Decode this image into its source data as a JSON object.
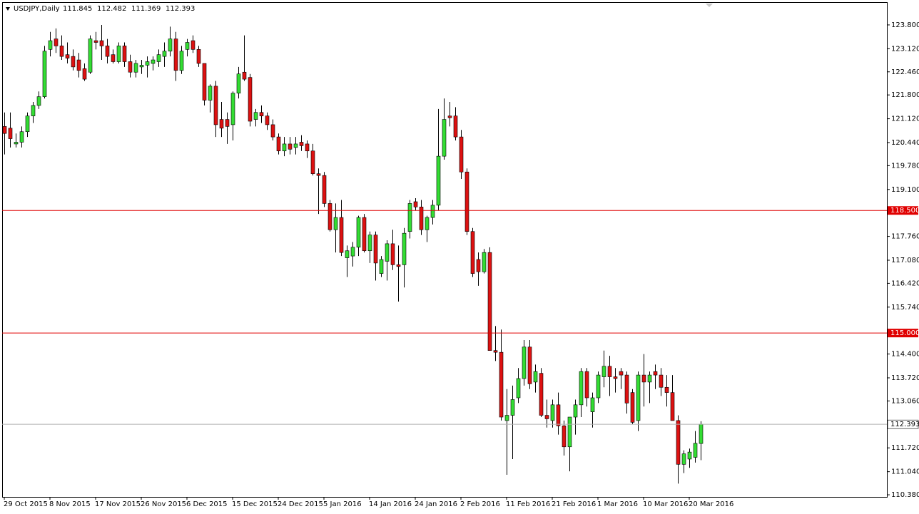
{
  "chart_data": {
    "type": "candlestick",
    "symbol": "USDJPY,Daily",
    "up_color": "#33dd33",
    "down_color": "#dd1111",
    "categories": [
      "29 Oct 2015",
      null,
      null,
      null,
      null,
      null,
      null,
      null,
      "8 Nov 2015",
      null,
      null,
      null,
      null,
      null,
      null,
      null,
      "17 Nov 2015",
      null,
      null,
      null,
      null,
      null,
      null,
      null,
      "26 Nov 2015",
      null,
      null,
      null,
      null,
      null,
      null,
      null,
      "6 Dec 2015",
      null,
      null,
      null,
      null,
      null,
      null,
      null,
      "15 Dec 2015",
      null,
      null,
      null,
      null,
      null,
      null,
      null,
      "24 Dec 2015",
      null,
      null,
      null,
      null,
      null,
      null,
      null,
      "5 Jan 2016",
      null,
      null,
      null,
      null,
      null,
      null,
      null,
      "14 Jan 2016",
      null,
      null,
      null,
      null,
      null,
      null,
      null,
      "24 Jan 2016",
      null,
      null,
      null,
      null,
      null,
      null,
      null,
      "2 Feb 2016",
      null,
      null,
      null,
      null,
      null,
      null,
      null,
      "11 Feb 2016",
      null,
      null,
      null,
      null,
      null,
      null,
      null,
      "21 Feb 2016",
      null,
      null,
      null,
      null,
      null,
      null,
      null,
      "1 Mar 2016",
      null,
      null,
      null,
      null,
      null,
      null,
      null,
      "10 Mar 2016",
      null,
      null,
      null,
      null,
      null,
      null,
      null,
      "20 Mar 2016",
      null,
      null
    ],
    "open": [
      120.9,
      120.85,
      120.4,
      120.45,
      120.75,
      121.2,
      121.5,
      121.75,
      123.1,
      123.4,
      123.2,
      122.95,
      122.9,
      122.8,
      122.55,
      122.45,
      123.35,
      123.35,
      123.2,
      122.95,
      122.75,
      123.2,
      122.75,
      122.45,
      122.6,
      122.65,
      122.7,
      122.75,
      122.9,
      123.05,
      123.4,
      122.5,
      123.1,
      123.35,
      123.1,
      122.7,
      121.65,
      122.05,
      121.1,
      121.1,
      120.95,
      121.85,
      122.45,
      122.3,
      121.1,
      121.3,
      121.2,
      120.95,
      120.6,
      120.2,
      120.4,
      120.3,
      120.45,
      120.4,
      120.2,
      119.55,
      119.5,
      118.7,
      117.95,
      118.3,
      117.15,
      117.2,
      117.45,
      118.3,
      117.35,
      117.8,
      116.7,
      117.05,
      117.55,
      116.95,
      116.95,
      117.9,
      118.75,
      118.6,
      117.95,
      118.3,
      118.65,
      120.05,
      121.2,
      121.2,
      120.6,
      119.6,
      117.9,
      117.1,
      116.75,
      117.3,
      114.5,
      114.45,
      112.5,
      112.65,
      113.15,
      113.7,
      114.6,
      113.6,
      113.85,
      112.65,
      112.5,
      112.95,
      112.35,
      111.75,
      112.6,
      112.95,
      113.9,
      112.75,
      113.15,
      113.75,
      114.05,
      113.75,
      113.9,
      113.8,
      113.3,
      112.5,
      113.8,
      113.6,
      113.9,
      113.8,
      113.45,
      113.3,
      112.5,
      111.25,
      111.4,
      111.45,
      111.845
    ],
    "high": [
      121.3,
      121.3,
      120.7,
      120.9,
      121.3,
      121.6,
      121.9,
      123.2,
      123.6,
      123.7,
      123.5,
      123.3,
      123.1,
      123.0,
      122.7,
      123.5,
      123.6,
      123.8,
      123.4,
      123.1,
      123.3,
      123.3,
      122.95,
      122.8,
      122.8,
      122.9,
      122.9,
      123.1,
      123.3,
      123.75,
      123.6,
      123.2,
      123.4,
      123.5,
      123.2,
      122.7,
      122.1,
      122.2,
      121.6,
      121.3,
      121.9,
      122.6,
      123.5,
      122.4,
      121.4,
      121.5,
      121.3,
      121.1,
      120.7,
      120.6,
      120.6,
      120.6,
      120.65,
      120.5,
      120.4,
      119.7,
      119.6,
      118.8,
      118.7,
      118.8,
      117.5,
      117.6,
      118.35,
      118.4,
      117.9,
      117.9,
      117.2,
      117.65,
      117.95,
      117.5,
      118.0,
      118.8,
      118.85,
      118.8,
      118.35,
      118.8,
      121.4,
      121.7,
      121.6,
      121.45,
      120.8,
      119.7,
      118.0,
      117.3,
      117.4,
      117.45,
      115.2,
      115.1,
      113.4,
      113.5,
      114.0,
      114.8,
      114.8,
      114.1,
      114.0,
      113.1,
      113.1,
      113.3,
      112.5,
      112.6,
      113.1,
      114.0,
      114.0,
      113.3,
      113.9,
      114.5,
      114.35,
      114.0,
      114.0,
      113.9,
      113.4,
      113.9,
      114.4,
      113.9,
      114.1,
      114.0,
      113.8,
      113.8,
      112.65,
      111.65,
      111.7,
      112.2,
      112.482
    ],
    "low": [
      120.1,
      120.3,
      120.3,
      120.3,
      120.6,
      121.0,
      121.4,
      121.7,
      122.9,
      123.0,
      122.8,
      122.7,
      122.5,
      122.3,
      122.2,
      122.4,
      123.1,
      122.8,
      122.7,
      122.7,
      122.7,
      122.6,
      122.3,
      122.3,
      122.4,
      122.3,
      122.5,
      122.6,
      122.6,
      122.9,
      122.2,
      122.4,
      122.9,
      123.0,
      122.6,
      121.5,
      121.3,
      120.6,
      120.6,
      120.4,
      120.5,
      121.7,
      122.2,
      120.9,
      120.9,
      121.0,
      120.8,
      120.5,
      120.1,
      120.05,
      120.1,
      120.1,
      120.2,
      120.0,
      119.5,
      118.4,
      118.6,
      117.9,
      117.3,
      117.2,
      116.6,
      116.9,
      117.2,
      117.3,
      117.0,
      116.5,
      116.6,
      116.5,
      116.8,
      115.9,
      116.3,
      117.7,
      118.5,
      117.8,
      117.6,
      118.1,
      118.5,
      119.95,
      120.9,
      120.5,
      119.4,
      117.8,
      116.6,
      116.35,
      116.7,
      114.5,
      114.2,
      112.5,
      110.95,
      111.4,
      113.0,
      113.5,
      113.4,
      113.3,
      112.6,
      112.3,
      112.3,
      112.1,
      111.5,
      111.05,
      112.1,
      112.6,
      112.9,
      112.3,
      113.0,
      113.45,
      113.2,
      113.3,
      113.4,
      112.7,
      112.4,
      112.2,
      112.9,
      113.0,
      113.4,
      113.2,
      112.9,
      112.5,
      110.7,
      111.0,
      111.15,
      111.3,
      111.369
    ],
    "close": [
      120.7,
      120.55,
      120.45,
      120.75,
      121.2,
      121.5,
      121.75,
      123.05,
      123.35,
      123.2,
      122.9,
      122.85,
      122.6,
      122.5,
      122.25,
      123.4,
      123.3,
      123.2,
      122.9,
      122.75,
      123.2,
      122.75,
      122.45,
      122.7,
      122.65,
      122.75,
      122.8,
      122.95,
      123.05,
      123.4,
      122.5,
      123.05,
      123.3,
      123.1,
      122.7,
      121.65,
      122.05,
      120.95,
      120.85,
      120.9,
      121.85,
      122.4,
      122.25,
      121.05,
      121.3,
      121.2,
      120.95,
      120.6,
      120.2,
      120.4,
      120.25,
      120.4,
      120.35,
      120.2,
      119.55,
      119.5,
      118.7,
      117.95,
      118.3,
      117.3,
      117.35,
      117.45,
      118.3,
      117.35,
      117.8,
      117.0,
      117.1,
      117.55,
      116.95,
      116.9,
      117.85,
      118.7,
      118.6,
      117.95,
      118.3,
      118.65,
      120.05,
      121.1,
      121.15,
      120.6,
      119.6,
      117.9,
      116.7,
      116.75,
      117.3,
      114.5,
      114.45,
      112.6,
      112.65,
      113.1,
      113.7,
      114.6,
      113.55,
      113.9,
      112.65,
      112.55,
      112.95,
      112.35,
      111.75,
      112.6,
      112.95,
      113.9,
      113.15,
      113.15,
      113.8,
      114.05,
      113.75,
      113.7,
      113.8,
      113.0,
      112.45,
      113.8,
      113.6,
      113.8,
      113.8,
      113.45,
      113.3,
      112.5,
      111.25,
      111.55,
      111.6,
      111.85,
      112.393
    ],
    "ylim": [
      110.32,
      124.43
    ],
    "yticks": [
      {
        "value": 123.8,
        "label": "123.800"
      },
      {
        "value": 123.12,
        "label": "123.120"
      },
      {
        "value": 122.46,
        "label": "122.460"
      },
      {
        "value": 121.8,
        "label": "121.800"
      },
      {
        "value": 121.12,
        "label": "121.120"
      },
      {
        "value": 120.44,
        "label": "120.440"
      },
      {
        "value": 119.78,
        "label": "119.780"
      },
      {
        "value": 119.1,
        "label": "119.100"
      },
      {
        "value": 117.76,
        "label": "117.760"
      },
      {
        "value": 117.08,
        "label": "117.080"
      },
      {
        "value": 116.42,
        "label": "116.420"
      },
      {
        "value": 115.74,
        "label": "115.740"
      },
      {
        "value": 114.4,
        "label": "114.400"
      },
      {
        "value": 113.72,
        "label": "113.720"
      },
      {
        "value": 113.06,
        "label": "113.060"
      },
      {
        "value": 111.72,
        "label": "111.720"
      },
      {
        "value": 111.04,
        "label": "111.040"
      },
      {
        "value": 110.38,
        "label": "110.380"
      }
    ],
    "hlines": [
      {
        "value": 118.5,
        "label": "118.500",
        "color": "#e00000"
      },
      {
        "value": 115.0,
        "label": "115.000",
        "color": "#e00000"
      }
    ],
    "price_line_color": "#b0b0b0"
  }
}
